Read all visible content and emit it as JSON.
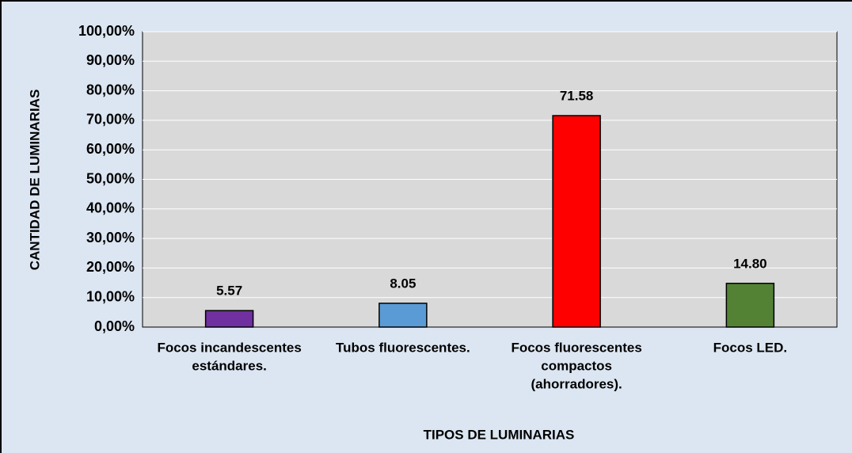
{
  "chart_data": {
    "type": "bar",
    "categories": [
      [
        "Focos incandescentes",
        "estándares."
      ],
      [
        "Tubos fluorescentes."
      ],
      [
        "Focos fluorescentes",
        "compactos",
        "(ahorradores)."
      ],
      [
        "Focos LED."
      ]
    ],
    "values": [
      5.57,
      8.05,
      71.58,
      14.8
    ],
    "value_labels": [
      "5.57",
      "8.05",
      "71.58",
      "14.80"
    ],
    "colors": [
      "#7030a0",
      "#5b9bd5",
      "#ff0000",
      "#548235"
    ],
    "xlabel": "TIPOS DE LUMINARIAS",
    "ylabel": "CANTIDAD DE LUMINARIAS",
    "ylim": [
      0,
      100
    ],
    "yticks": [
      {
        "value": 0,
        "label": "0,00%"
      },
      {
        "value": 10,
        "label": "10,00%"
      },
      {
        "value": 20,
        "label": "20,00%"
      },
      {
        "value": 30,
        "label": "30,00%"
      },
      {
        "value": 40,
        "label": "40,00%"
      },
      {
        "value": 50,
        "label": "50,00%"
      },
      {
        "value": 60,
        "label": "60,00%"
      },
      {
        "value": 70,
        "label": "70,00%"
      },
      {
        "value": 80,
        "label": "80,00%"
      },
      {
        "value": 90,
        "label": "90,00%"
      },
      {
        "value": 100,
        "label": "100,00%"
      }
    ],
    "grid": true
  }
}
